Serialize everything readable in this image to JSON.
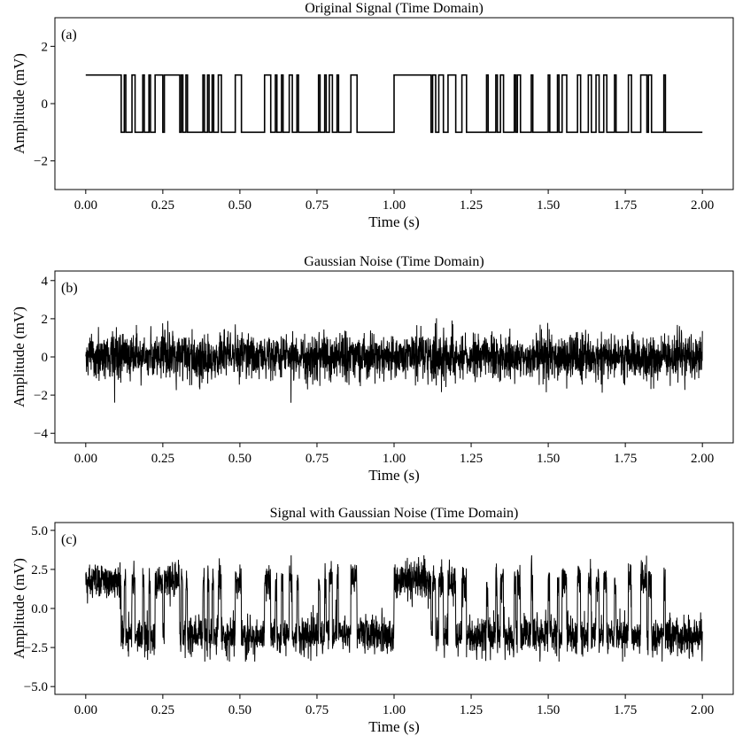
{
  "chart_data": [
    {
      "type": "line",
      "panel_label": "(a)",
      "title": "Original Signal (Time Domain)",
      "xlabel": "Time (s)",
      "ylabel": "Amplitude (mV)",
      "xlim": [
        -0.1,
        2.1
      ],
      "ylim": [
        -3,
        3
      ],
      "xticks": [
        "0.00",
        "0.25",
        "0.50",
        "0.75",
        "1.00",
        "1.25",
        "1.50",
        "1.75",
        "2.00"
      ],
      "yticks": [
        "2",
        "0",
        "−2"
      ],
      "ytick_values": [
        2,
        0,
        -2
      ],
      "series": [
        {
          "kind": "square-wave",
          "levels": [
            1,
            -1
          ],
          "start_level": 1,
          "transitions_s": [
            0.115,
            0.125,
            0.13,
            0.15,
            0.16,
            0.185,
            0.19,
            0.205,
            0.21,
            0.225,
            0.25,
            0.255,
            0.305,
            0.31,
            0.315,
            0.325,
            0.33,
            0.38,
            0.385,
            0.395,
            0.4,
            0.41,
            0.415,
            0.43,
            0.44,
            0.485,
            0.505,
            0.58,
            0.6,
            0.615,
            0.62,
            0.635,
            0.64,
            0.66,
            0.67,
            0.685,
            0.69,
            0.755,
            0.76,
            0.775,
            0.78,
            0.79,
            0.8,
            0.815,
            0.82,
            0.86,
            0.88,
            1.0,
            1.12,
            1.125,
            1.135,
            1.145,
            1.16,
            1.175,
            1.2,
            1.22,
            1.235,
            1.3,
            1.305,
            1.33,
            1.335,
            1.345,
            1.355,
            1.39,
            1.395,
            1.4,
            1.41,
            1.445,
            1.45,
            1.5,
            1.505,
            1.53,
            1.535,
            1.545,
            1.56,
            1.595,
            1.605,
            1.63,
            1.64,
            1.655,
            1.665,
            1.68,
            1.69,
            1.715,
            1.72,
            1.76,
            1.77,
            1.8,
            1.82,
            1.825,
            1.835,
            1.875,
            1.88
          ],
          "end_s": 2.0
        }
      ]
    },
    {
      "type": "line",
      "panel_label": "(b)",
      "title": "Gaussian Noise (Time Domain)",
      "xlabel": "Time (s)",
      "ylabel": "Amplitude (mV)",
      "xlim": [
        -0.1,
        2.1
      ],
      "ylim": [
        -4.5,
        4.5
      ],
      "xticks": [
        "0.00",
        "0.25",
        "0.50",
        "0.75",
        "1.00",
        "1.25",
        "1.50",
        "1.75",
        "2.00"
      ],
      "yticks": [
        "4",
        "2",
        "0",
        "−2",
        "−4"
      ],
      "ytick_values": [
        4,
        2,
        0,
        -2,
        -4
      ],
      "series": [
        {
          "kind": "gaussian-noise",
          "mean": 0,
          "std": 0.6,
          "envelope": [
            -2.4,
            2.4
          ],
          "x_range_s": [
            0,
            2
          ]
        }
      ]
    },
    {
      "type": "line",
      "panel_label": "(c)",
      "title": "Signal with Gaussian Noise (Time Domain)",
      "xlabel": "Time (s)",
      "ylabel": "Amplitude (mV)",
      "xlim": [
        -0.1,
        2.1
      ],
      "ylim": [
        -5.5,
        5.5
      ],
      "xticks": [
        "0.00",
        "0.25",
        "0.50",
        "0.75",
        "1.00",
        "1.25",
        "1.50",
        "1.75",
        "2.00"
      ],
      "yticks": [
        "5.0",
        "2.5",
        "0.0",
        "−2.5",
        "−5.0"
      ],
      "ytick_values": [
        5,
        2.5,
        0,
        -2.5,
        -5
      ],
      "series": [
        {
          "kind": "signal-plus-noise",
          "levels": [
            1,
            -1
          ],
          "scale": 1.75,
          "noise_std": 0.6,
          "envelope": [
            -3.4,
            3.4
          ],
          "x_range_s": [
            0,
            2
          ]
        }
      ]
    }
  ]
}
